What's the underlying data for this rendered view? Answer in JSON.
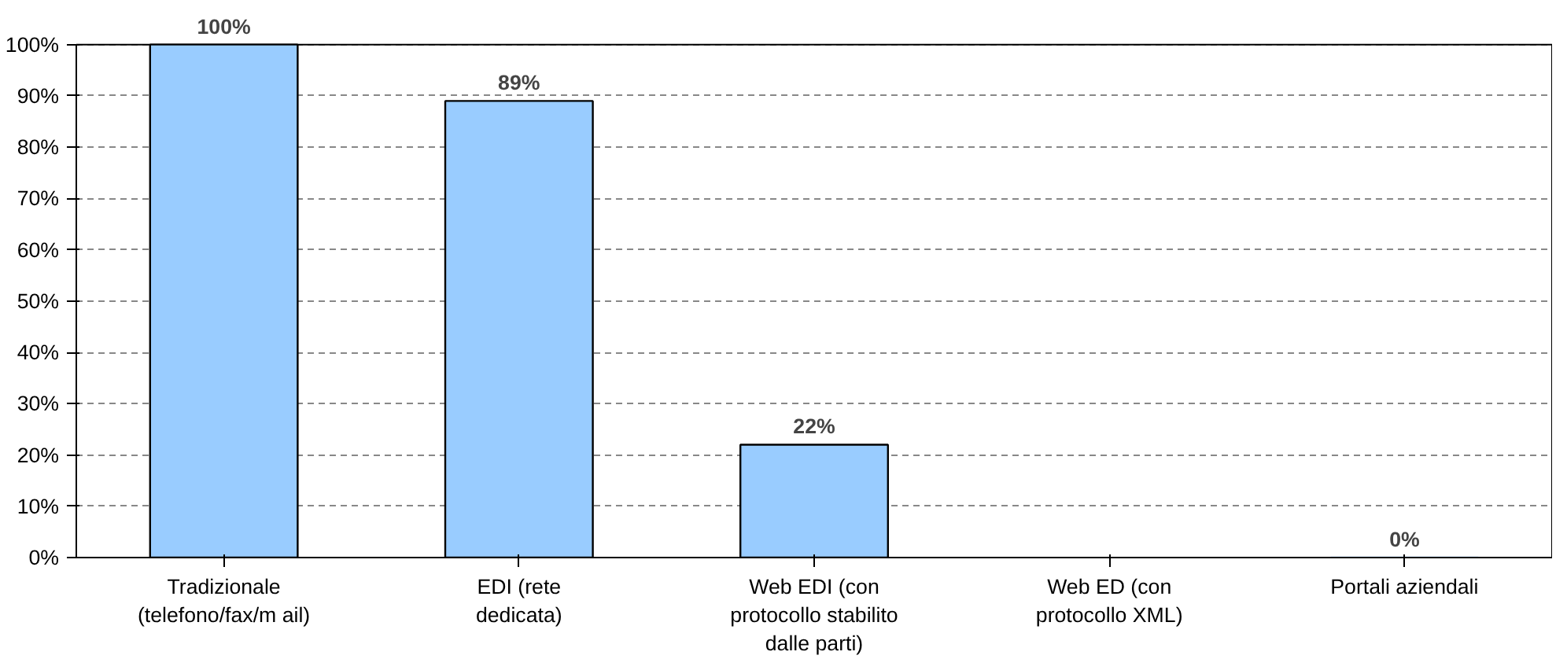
{
  "chart_data": {
    "type": "bar",
    "categories": [
      "Tradizionale\n(telefono/fax/m ail)",
      "EDI (rete\ndedicata)",
      "Web EDI (con\nprotocollo stabilito\ndalle parti)",
      "Web ED (con\nprotocollo XML)",
      "Portali aziendali"
    ],
    "values": [
      100,
      89,
      22,
      null,
      0
    ],
    "value_labels": [
      "100%",
      "89%",
      "22%",
      null,
      "0%"
    ],
    "color": "#99ccff",
    "ylim": [
      0,
      100
    ],
    "yticks": [
      {
        "value": 0,
        "label": "0%"
      },
      {
        "value": 10,
        "label": "10%"
      },
      {
        "value": 20,
        "label": "20%"
      },
      {
        "value": 30,
        "label": "30%"
      },
      {
        "value": 40,
        "label": "40%"
      },
      {
        "value": 50,
        "label": "50%"
      },
      {
        "value": 60,
        "label": "60%"
      },
      {
        "value": 70,
        "label": "70%"
      },
      {
        "value": 80,
        "label": "80%"
      },
      {
        "value": 90,
        "label": "90%"
      },
      {
        "value": 100,
        "label": "100%"
      }
    ],
    "grid": "y"
  }
}
